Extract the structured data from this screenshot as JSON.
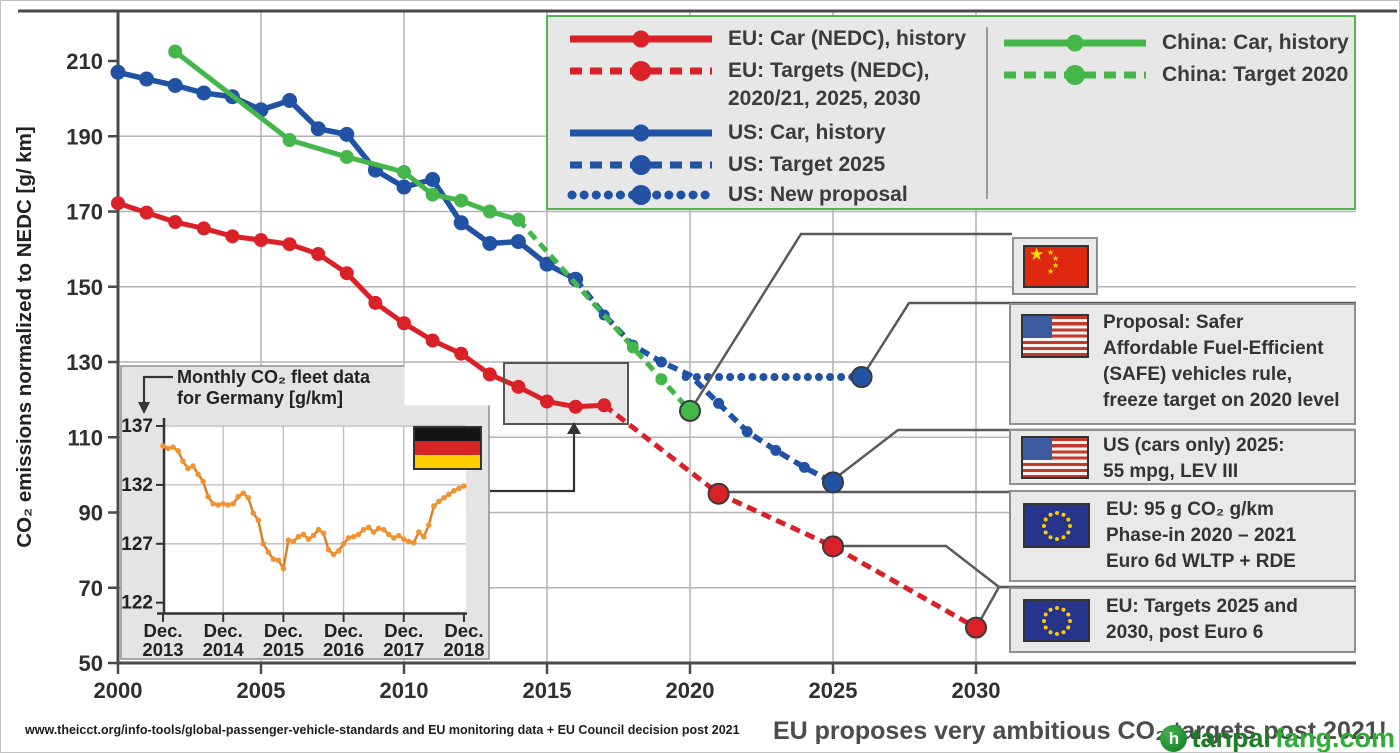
{
  "legend": {
    "left": [
      {
        "label": "EU: Car (NEDC), history"
      },
      {
        "label": "EU: Targets (NEDC),",
        "label2": "2020/21, 2025, 2030"
      },
      {
        "label": "US: Car, history"
      },
      {
        "label": "US: Target 2025"
      },
      {
        "label": "US: New proposal"
      }
    ],
    "right": [
      {
        "label": "China: Car, history"
      },
      {
        "label": "China: Target 2020"
      }
    ]
  },
  "annotations": [
    {
      "flag": "china",
      "lines": []
    },
    {
      "flag": "us",
      "lines": [
        "Proposal: Safer",
        "Affordable Fuel-Efficient",
        "(SAFE) vehicles rule,",
        "freeze target on 2020 level"
      ]
    },
    {
      "flag": "us",
      "lines": [
        "US (cars only) 2025:",
        "55 mpg, LEV III"
      ]
    },
    {
      "flag": "eu",
      "lines": [
        "EU: 95 g CO₂ g/km",
        "Phase-in 2020 – 2021",
        "Euro 6d WLTP + RDE"
      ]
    },
    {
      "flag": "eu",
      "lines": [
        "EU: Targets 2025 and",
        "2030, post Euro 6"
      ]
    }
  ],
  "footer": {
    "source": "www.theicct.org/info-tools/global-passenger-vehicle-standards and EU monitoring data + EU Council decision post 2021",
    "headline": "EU proposes very ambitious CO₂ targets post 2021!"
  },
  "watermark": {
    "text1": "tanpai",
    "text2": "fang.com"
  },
  "chart_data": {
    "type": "line",
    "title": "",
    "main": {
      "ylabel": "CO₂ emissions normalized to NEDC [g/ km]",
      "xlabel": "",
      "ylim": [
        50,
        210
      ],
      "y_ticks": [
        210,
        190,
        170,
        150,
        130,
        110,
        90,
        70,
        50
      ],
      "xlim": [
        2000,
        2033
      ],
      "x_ticks": [
        2000,
        2005,
        2010,
        2015,
        2020,
        2025,
        2030
      ],
      "grid": true,
      "series": [
        {
          "key": "eu-car-history",
          "name": "EU: Car (NEDC), history",
          "color": "#da2128",
          "style": "solid",
          "width": 5,
          "marker_r": 7,
          "mark_all": true,
          "points": [
            [
              2000,
              172.2
            ],
            [
              2001,
              169.7
            ],
            [
              2002,
              167.2
            ],
            [
              2003,
              165.5
            ],
            [
              2004,
              163.4
            ],
            [
              2005,
              162.4
            ],
            [
              2006,
              161.3
            ],
            [
              2007,
              158.7
            ],
            [
              2008,
              153.6
            ],
            [
              2009,
              145.7
            ],
            [
              2010,
              140.3
            ],
            [
              2011,
              135.7
            ],
            [
              2012,
              132.2
            ],
            [
              2013,
              126.7
            ],
            [
              2014,
              123.4
            ],
            [
              2015,
              119.5
            ],
            [
              2016,
              118.1
            ],
            [
              2017,
              118.5
            ]
          ]
        },
        {
          "key": "eu-targets",
          "name": "EU: Targets (NEDC), 2020/21, 2025, 2030",
          "color": "#da2128",
          "style": "dashed",
          "width": 5,
          "points": [
            [
              2017,
              118.5
            ],
            [
              2021,
              95
            ],
            [
              2025,
              81
            ],
            [
              2030,
              59.4
            ]
          ],
          "big_markers": [
            [
              2021,
              95
            ],
            [
              2025,
              81
            ],
            [
              2030,
              59.4
            ]
          ]
        },
        {
          "key": "us-car-history",
          "name": "US: Car, history",
          "color": "#2152a3",
          "style": "solid",
          "width": 5.5,
          "marker_r": 7.5,
          "mark_all": true,
          "points": [
            [
              2000,
              207
            ],
            [
              2001,
              205.2
            ],
            [
              2002,
              203.5
            ],
            [
              2003,
              201.5
            ],
            [
              2004,
              200.5
            ],
            [
              2005,
              197
            ],
            [
              2006,
              199.5
            ],
            [
              2007,
              192
            ],
            [
              2008,
              190.5
            ],
            [
              2009,
              181
            ],
            [
              2010,
              176.5
            ],
            [
              2011,
              178.5
            ],
            [
              2012,
              167
            ],
            [
              2013,
              161.5
            ],
            [
              2014,
              162
            ],
            [
              2015,
              156
            ],
            [
              2016,
              152
            ]
          ]
        },
        {
          "key": "us-target-2025",
          "name": "US: Target 2025",
          "color": "#2152a3",
          "style": "dashed",
          "width": 5.5,
          "marker_r": 5.5,
          "points": [
            [
              2016,
              152
            ],
            [
              2017,
              142.5
            ],
            [
              2018,
              134.5
            ],
            [
              2019,
              130
            ],
            [
              2020,
              126.5
            ],
            [
              2021,
              119
            ],
            [
              2022,
              111.5
            ],
            [
              2023,
              106.5
            ],
            [
              2024,
              102
            ],
            [
              2025,
              98
            ]
          ],
          "markers": [
            [
              2017,
              142.5
            ],
            [
              2018,
              134.5
            ],
            [
              2019,
              130
            ],
            [
              2021,
              119
            ],
            [
              2022,
              111.5
            ],
            [
              2023,
              106.5
            ],
            [
              2024,
              102
            ]
          ],
          "big_markers": [
            [
              2025,
              98
            ]
          ]
        },
        {
          "key": "us-new-proposal",
          "name": "US: New proposal",
          "color": "#2152a3",
          "style": "dotted",
          "width": 8,
          "points": [
            [
              2019.85,
              126
            ],
            [
              2026,
              126
            ]
          ],
          "big_markers": [
            [
              2026,
              126
            ]
          ]
        },
        {
          "key": "china-car-history",
          "name": "China: Car, history",
          "color": "#45b649",
          "style": "solid",
          "width": 5,
          "marker_r": 7,
          "mark_all": true,
          "points": [
            [
              2002,
              212.5
            ],
            [
              2006,
              189
            ],
            [
              2008,
              184.5
            ],
            [
              2010,
              180.5
            ],
            [
              2011,
              174.5
            ],
            [
              2012,
              172.9
            ],
            [
              2013,
              170
            ],
            [
              2014,
              167.8
            ]
          ]
        },
        {
          "key": "china-target-2020",
          "name": "China: Target 2020",
          "color": "#45b649",
          "style": "dashed",
          "width": 5,
          "marker_r": 6,
          "points": [
            [
              2014,
              167.8
            ],
            [
              2020,
              117
            ]
          ],
          "markers": [
            [
              2018,
              133.9
            ],
            [
              2019,
              125.4
            ]
          ],
          "big_markers": [
            [
              2020,
              117
            ]
          ]
        }
      ]
    },
    "inset": {
      "title_lines": [
        "Monthly CO₂ fleet data",
        "for Germany [g/km]"
      ],
      "series_name": "Germany monthly fleet CO₂",
      "y_ticks": [
        137,
        132,
        127,
        122
      ],
      "ylim": [
        121.2,
        137.2
      ],
      "x_tick_labels": [
        [
          "Dec.",
          "2013"
        ],
        [
          "Dec.",
          "2014"
        ],
        [
          "Dec.",
          "2015"
        ],
        [
          "Dec.",
          "2016"
        ],
        [
          "Dec.",
          "2017"
        ],
        [
          "Dec.",
          "2018"
        ]
      ],
      "start_month": "Dec 2013",
      "values": [
        135.3,
        135.1,
        135.2,
        134.9,
        134.0,
        133.4,
        133.6,
        132.9,
        132.3,
        131.0,
        130.4,
        130.3,
        130.4,
        130.3,
        130.4,
        131.0,
        131.3,
        130.9,
        129.6,
        129.0,
        127.0,
        126.3,
        125.7,
        125.6,
        124.9,
        127.3,
        127.2,
        127.6,
        127.8,
        127.4,
        127.7,
        128.2,
        127.9,
        126.5,
        126.1,
        126.4,
        127.0,
        127.5,
        127.6,
        127.8,
        128.2,
        128.4,
        128.0,
        128.3,
        128.2,
        127.8,
        127.5,
        127.7,
        127.4,
        127.2,
        127.1,
        128.0,
        127.6,
        128.6,
        130.2,
        130.6,
        130.9,
        131.2,
        131.5,
        131.7,
        131.9
      ]
    }
  }
}
